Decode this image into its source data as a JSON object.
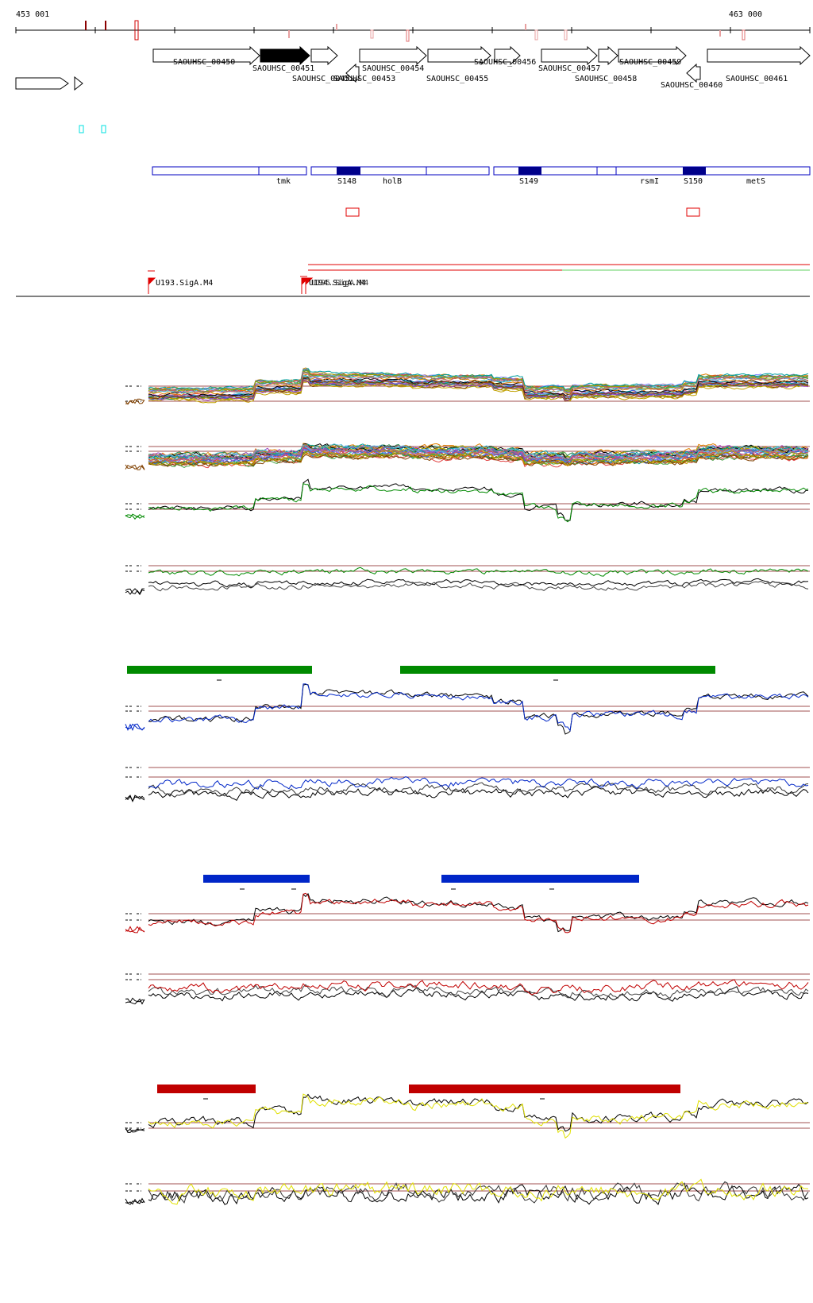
{
  "coordinates": {
    "start": "453 001",
    "end": "463 000"
  },
  "genes": [
    {
      "label": "SAOUHSC_00450",
      "filled": false,
      "strand": "+"
    },
    {
      "label": "SAOUHSC_00451",
      "filled": true,
      "strand": "+"
    },
    {
      "label": "SAOUHSC_00452",
      "filled": false,
      "strand": "+"
    },
    {
      "label": "SAOUHSC_00453",
      "filled": false,
      "strand": "-"
    },
    {
      "label": "SAOUHSC_00454",
      "filled": false,
      "strand": "+"
    },
    {
      "label": "SAOUHSC_00455",
      "filled": false,
      "strand": "+"
    },
    {
      "label": "SAOUHSC_00456",
      "filled": false,
      "strand": "+"
    },
    {
      "label": "SAOUHSC_00457",
      "filled": false,
      "strand": "+"
    },
    {
      "label": "SAOUHSC_00458",
      "filled": false,
      "strand": "+"
    },
    {
      "label": "SAOUHSC_00459",
      "filled": false,
      "strand": "+"
    },
    {
      "label": "SAOUHSC_00460",
      "filled": false,
      "strand": "-"
    },
    {
      "label": "SAOUHSC_00461",
      "filled": false,
      "strand": "+"
    }
  ],
  "annotation_labels": [
    "tmk",
    "S148",
    "holB",
    "S149",
    "rsmI",
    "S150",
    "metS"
  ],
  "promoters": [
    "U193.SigA.M4",
    "U194.SigA.M4",
    "U195.SigA.M4"
  ],
  "colors": {
    "green": "#008a00",
    "blue": "#0026c8",
    "red": "#c00000",
    "yellow": "#e0e000",
    "outline_blue": "#0000c0",
    "dark_navy": "#00008a",
    "guide": "#a05050"
  }
}
